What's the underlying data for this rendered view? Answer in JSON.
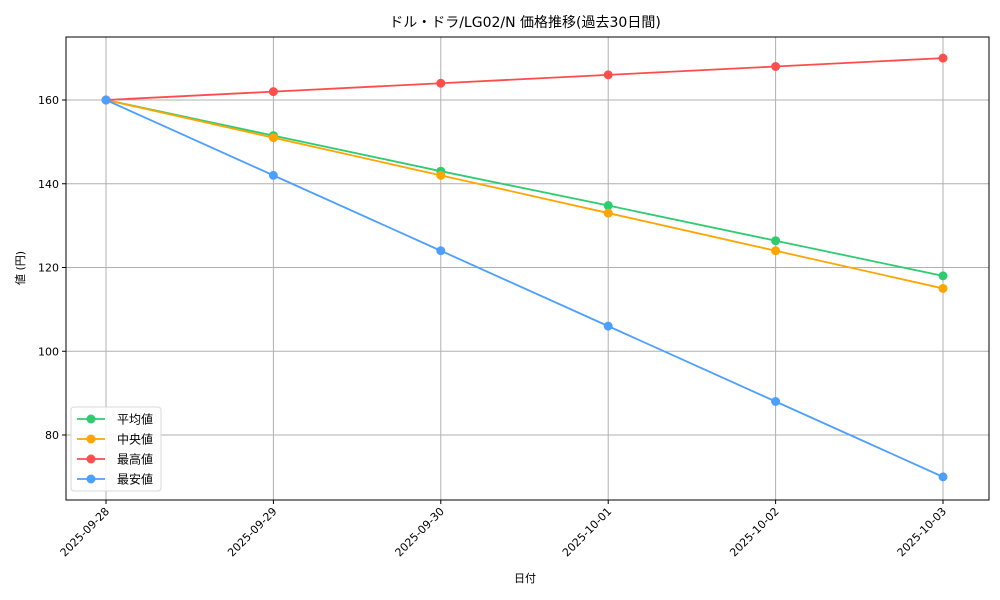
{
  "chart_data": {
    "type": "line",
    "title": "ドル・ドラ/LG02/N 価格推移(過去30日間)",
    "xlabel": "日付",
    "ylabel": "値 (円)",
    "categories": [
      "2025-09-28",
      "2025-09-29",
      "2025-09-30",
      "2025-10-01",
      "2025-10-02",
      "2025-10-03"
    ],
    "ylim": [
      64.5,
      175
    ],
    "yticks": [
      80,
      100,
      120,
      140,
      160
    ],
    "grid": true,
    "legend_position": "lower left",
    "series": [
      {
        "name": "平均値",
        "color": "#2ecc71",
        "values": [
          160,
          151.5,
          143,
          134.8,
          126.4,
          118
        ]
      },
      {
        "name": "中央値",
        "color": "#ffa500",
        "values": [
          160,
          151,
          142,
          133,
          124,
          115
        ]
      },
      {
        "name": "最高値",
        "color": "#ff4d4d",
        "values": [
          160,
          162,
          164,
          166,
          168,
          170
        ]
      },
      {
        "name": "最安値",
        "color": "#4d9fff",
        "values": [
          160,
          142,
          124,
          106,
          88,
          70
        ]
      }
    ]
  }
}
